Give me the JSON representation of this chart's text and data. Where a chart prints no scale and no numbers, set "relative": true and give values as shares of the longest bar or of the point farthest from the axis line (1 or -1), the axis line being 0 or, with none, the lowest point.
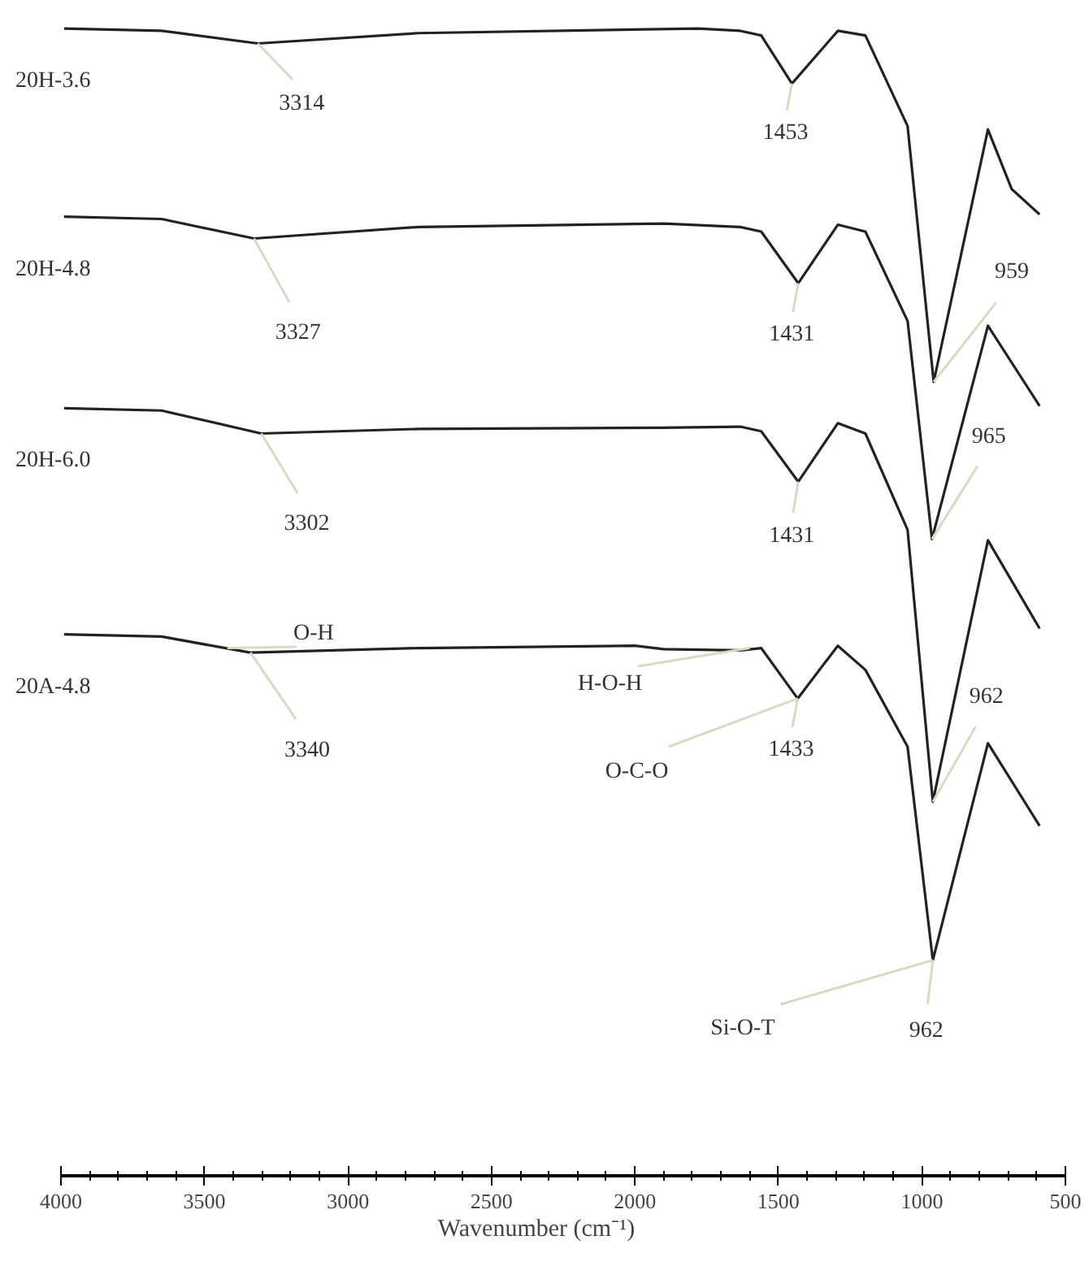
{
  "chart_data": {
    "type": "line",
    "relative": true,
    "xlabel": "Wavenumber (cm⁻¹)",
    "xlim": [
      4000,
      500
    ],
    "xticks": [
      4000,
      3500,
      3000,
      2500,
      2000,
      1500,
      1000,
      500
    ],
    "tick_labels": "x",
    "series": [
      {
        "name": "20H-3.6",
        "color": "#222222",
        "x": [
          3989,
          3649,
          3314,
          2754,
          1780,
          1633,
          1560,
          1453,
          1293,
          1197,
          1050,
          959,
          770,
          687,
          590
        ],
        "values": [
          1.0,
          0.998,
          0.987,
          0.996,
          1.0,
          0.998,
          0.994,
          0.952,
          0.998,
          0.994,
          0.915,
          0.692,
          0.912,
          0.86,
          0.838
        ]
      },
      {
        "name": "20H-4.8",
        "color": "#222222",
        "x": [
          3989,
          3649,
          3327,
          2754,
          1900,
          1633,
          1560,
          1431,
          1293,
          1197,
          1050,
          965,
          770,
          590
        ],
        "values": [
          0.836,
          0.834,
          0.817,
          0.827,
          0.83,
          0.827,
          0.823,
          0.778,
          0.829,
          0.823,
          0.745,
          0.555,
          0.741,
          0.671
        ]
      },
      {
        "name": "20H-6.0",
        "color": "#222222",
        "x": [
          3989,
          3649,
          3302,
          2754,
          1900,
          1633,
          1560,
          1431,
          1293,
          1197,
          1050,
          962,
          770,
          590
        ],
        "values": [
          0.669,
          0.667,
          0.647,
          0.651,
          0.652,
          0.653,
          0.649,
          0.605,
          0.656,
          0.647,
          0.563,
          0.326,
          0.554,
          0.477
        ]
      },
      {
        "name": "20A-4.8",
        "color": "#222222",
        "x": [
          3989,
          3649,
          3340,
          2754,
          2000,
          1900,
          1633,
          1560,
          1433,
          1293,
          1197,
          1050,
          962,
          770,
          590
        ],
        "values": [
          0.472,
          0.47,
          0.456,
          0.46,
          0.462,
          0.459,
          0.458,
          0.46,
          0.416,
          0.462,
          0.441,
          0.374,
          0.188,
          0.377,
          0.305
        ]
      }
    ],
    "annotations": [
      {
        "text": "3314",
        "x": 3314,
        "y": 0.987
      },
      {
        "text": "1453",
        "x": 1453,
        "y": 0.952
      },
      {
        "text": "959",
        "x": 959,
        "y": 0.692
      },
      {
        "text": "3327",
        "x": 3327,
        "y": 0.817
      },
      {
        "text": "1431",
        "x": 1431,
        "y": 0.778
      },
      {
        "text": "965",
        "x": 965,
        "y": 0.555
      },
      {
        "text": "3302",
        "x": 3302,
        "y": 0.647
      },
      {
        "text": "1431",
        "x": 1431,
        "y": 0.605
      },
      {
        "text": "O-H",
        "x": 3420,
        "y": 0.46
      },
      {
        "text": "3340",
        "x": 3340,
        "y": 0.456
      },
      {
        "text": "H-O-H",
        "x": 1600,
        "y": 0.46
      },
      {
        "text": "1433",
        "x": 1433,
        "y": 0.416
      },
      {
        "text": "962",
        "x": 962,
        "y": 0.326
      },
      {
        "text": "O-C-O",
        "x": 1433,
        "y": 0.416
      },
      {
        "text": "Si-O-T",
        "x": 962,
        "y": 0.188
      },
      {
        "text": "962",
        "x": 962,
        "y": 0.188
      }
    ]
  }
}
